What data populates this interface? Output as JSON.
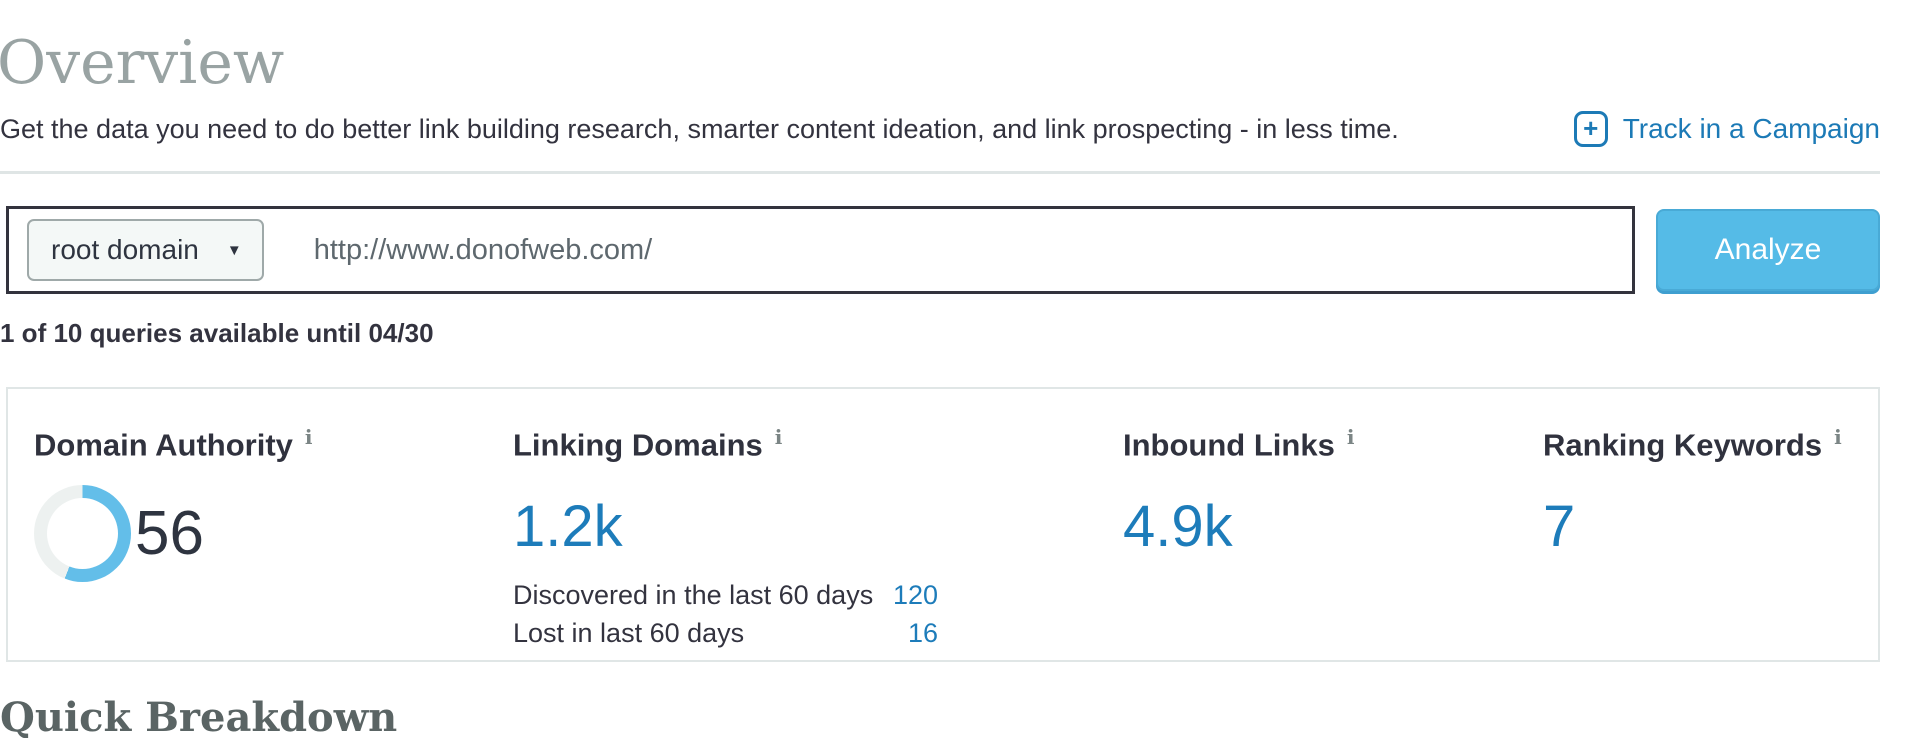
{
  "page": {
    "title": "Overview",
    "subtitle": "Get the data you need to do better link building research, smarter content ideation, and link prospecting - in less time.",
    "track_link_label": "Track in a Campaign",
    "queries_note": "1 of 10 queries available until 04/30",
    "section_heading": "Quick Breakdown"
  },
  "search": {
    "scope_label": "root domain",
    "query_value": "http://www.donofweb.com/",
    "analyze_label": "Analyze"
  },
  "metrics": {
    "items": [
      {
        "label": "Domain Authority",
        "value": "56",
        "gauge_percent": 56
      },
      {
        "label": "Linking Domains",
        "value": "1.2k",
        "details": [
          {
            "label": "Discovered in the last 60 days",
            "value": "120"
          },
          {
            "label": "Lost in last 60 days",
            "value": "16"
          }
        ]
      },
      {
        "label": "Inbound Links",
        "value": "4.9k"
      },
      {
        "label": "Ranking Keywords",
        "value": "7"
      }
    ]
  },
  "icons": {
    "plus": "+",
    "caret": "▼",
    "info": "i"
  },
  "colors": {
    "accent_blue": "#1d7cba",
    "button_blue": "#55bbe7",
    "gauge_fill": "#63bee9",
    "gauge_track": "#edf1f0",
    "title_gray": "#99a3a3",
    "text_navy": "#33333f",
    "heading_slate": "#5a6464"
  }
}
